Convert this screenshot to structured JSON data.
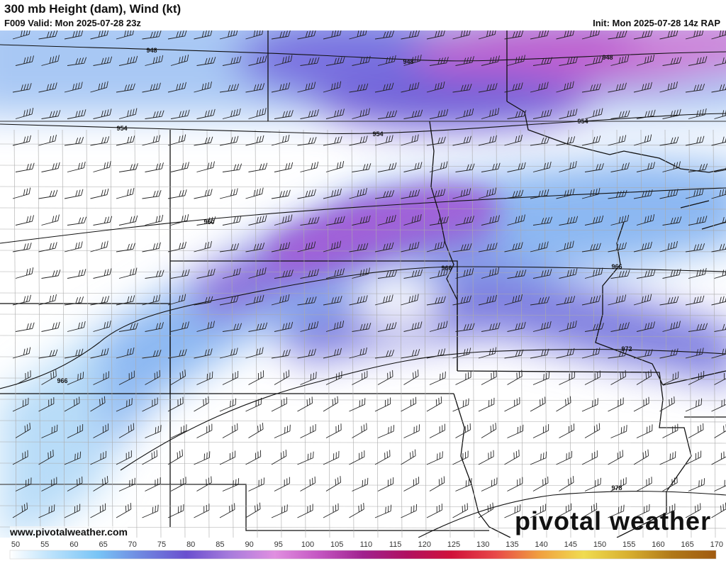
{
  "header": {
    "title": "300 mb Height (dam), Wind (kt)",
    "valid": "F009 Valid: Mon 2025-07-28 23z",
    "init": "Init: Mon 2025-07-28 14z RAP"
  },
  "map": {
    "contour_labels": [
      "948",
      "948",
      "948",
      "954",
      "954",
      "954",
      "960",
      "966",
      "966",
      "966",
      "972",
      "978"
    ],
    "contour_interval_dam": 6,
    "wind_barb_direction": "west-southwest"
  },
  "footer": {
    "website": "www.pivotalweather.com",
    "logo": "pivotal weather"
  },
  "colorbar": {
    "units": "kt",
    "ticks": [
      "50",
      "55",
      "60",
      "65",
      "70",
      "75",
      "80",
      "85",
      "90",
      "95",
      "100",
      "105",
      "110",
      "115",
      "120",
      "125",
      "130",
      "135",
      "140",
      "145",
      "150",
      "155",
      "160",
      "165",
      "170"
    ],
    "colors": [
      "#ffffff",
      "#b7e0fb",
      "#78c4f6",
      "#6f86e0",
      "#6a4fcf",
      "#a87cdc",
      "#e08fe0",
      "#c456c2",
      "#a0228e",
      "#b01060",
      "#d0103a",
      "#e84848",
      "#f0a040",
      "#f0dc50",
      "#d8b030",
      "#b07818",
      "#a05a10"
    ]
  }
}
